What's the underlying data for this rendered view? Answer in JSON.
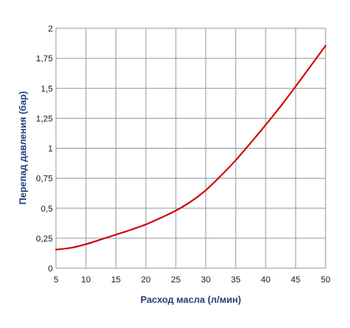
{
  "chart_data": {
    "type": "line",
    "xlabel": "Расход масла (л/мин)",
    "ylabel": "Перепад давления (бар)",
    "xlim": [
      5,
      50
    ],
    "ylim": [
      0,
      2
    ],
    "grid": true,
    "colors": {
      "series": "#cc0000",
      "grid": "#9a9a9a",
      "axis_title": "#1f3f7a"
    },
    "x_ticks": [
      {
        "value": 5,
        "label": "5"
      },
      {
        "value": 10,
        "label": "10"
      },
      {
        "value": 15,
        "label": "15"
      },
      {
        "value": 20,
        "label": "20"
      },
      {
        "value": 25,
        "label": "25"
      },
      {
        "value": 30,
        "label": "30"
      },
      {
        "value": 35,
        "label": "35"
      },
      {
        "value": 40,
        "label": "40"
      },
      {
        "value": 45,
        "label": "45"
      },
      {
        "value": 50,
        "label": "50"
      }
    ],
    "y_ticks": [
      {
        "value": 0,
        "label": "0"
      },
      {
        "value": 0.25,
        "label": "0,25"
      },
      {
        "value": 0.5,
        "label": "0,5"
      },
      {
        "value": 0.75,
        "label": "0,75"
      },
      {
        "value": 1,
        "label": "1"
      },
      {
        "value": 1.25,
        "label": "1,25"
      },
      {
        "value": 1.5,
        "label": "1,5"
      },
      {
        "value": 1.75,
        "label": "1,75"
      },
      {
        "value": 2,
        "label": "2"
      }
    ],
    "series": [
      {
        "x": [
          5,
          7.5,
          10,
          12.5,
          15,
          17.5,
          20,
          22.5,
          25,
          27.5,
          30,
          32.5,
          35,
          37.5,
          40,
          42.5,
          45,
          47.5,
          50
        ],
        "y": [
          0.155,
          0.17,
          0.2,
          0.24,
          0.28,
          0.32,
          0.365,
          0.42,
          0.48,
          0.555,
          0.65,
          0.77,
          0.9,
          1.045,
          1.195,
          1.35,
          1.515,
          1.685,
          1.855
        ]
      }
    ]
  }
}
